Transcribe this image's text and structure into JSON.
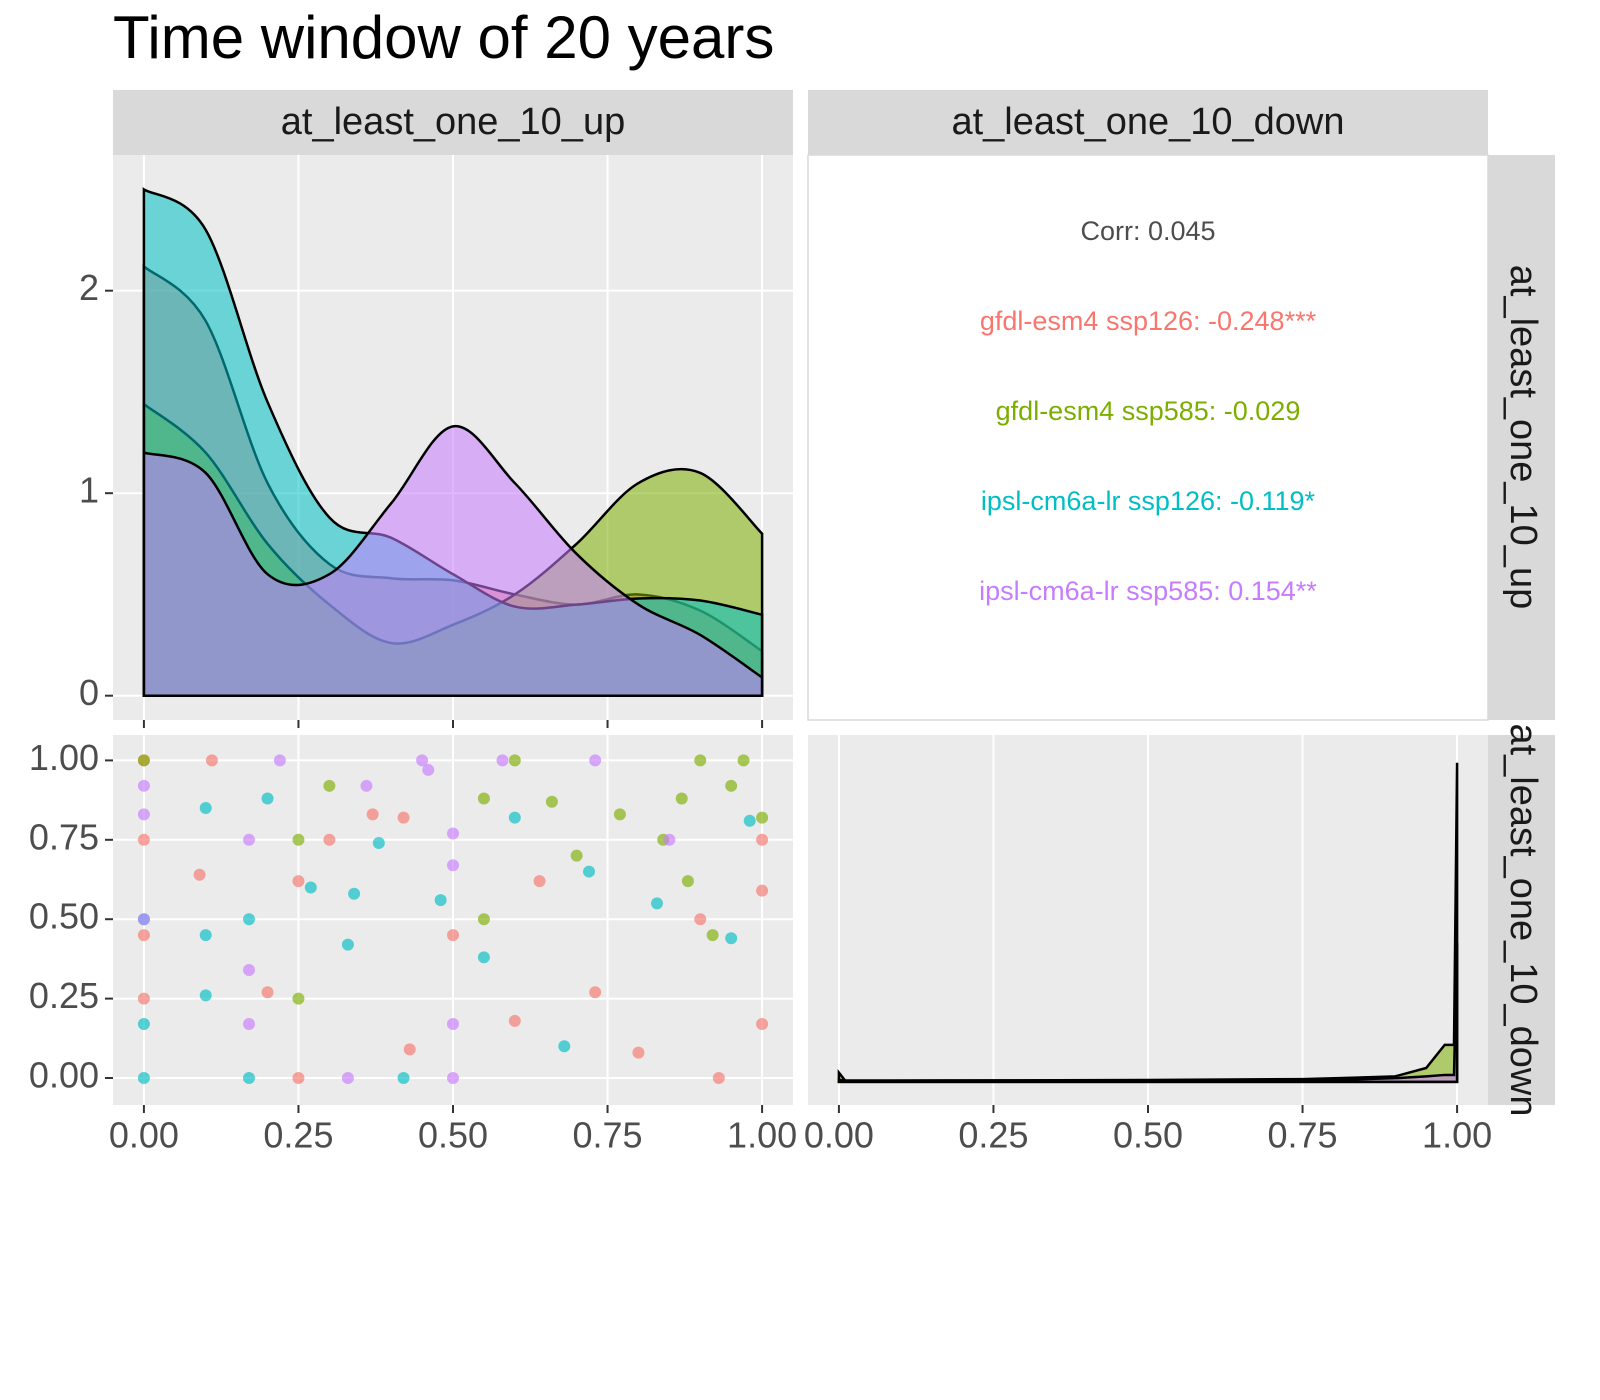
{
  "title": "Time window of 20 years",
  "columns": [
    "at_least_one_10_up",
    "at_least_one_10_down"
  ],
  "rows": [
    "at_least_one_10_up",
    "at_least_one_10_down"
  ],
  "chart_data": [
    {
      "type": "density",
      "x": [
        0,
        0.1,
        0.2,
        0.3,
        0.4,
        0.5,
        0.6,
        0.7,
        0.8,
        0.9,
        1
      ],
      "series": [
        {
          "name": "gfdl-esm4 ssp126",
          "color": "#F8766D",
          "values": [
            2.12,
            1.85,
            1.05,
            0.65,
            0.58,
            0.57,
            0.5,
            0.45,
            0.5,
            0.42,
            0.22
          ]
        },
        {
          "name": "gfdl-esm4 ssp585",
          "color": "#7CAE00",
          "values": [
            1.44,
            1.2,
            0.75,
            0.45,
            0.26,
            0.35,
            0.5,
            0.75,
            1.05,
            1.1,
            0.8
          ]
        },
        {
          "name": "ipsl-cm6a-lr ssp126",
          "color": "#00BFC4",
          "values": [
            2.5,
            2.3,
            1.45,
            0.88,
            0.78,
            0.6,
            0.44,
            0.45,
            0.48,
            0.47,
            0.4
          ]
        },
        {
          "name": "ipsl-cm6a-lr ssp585",
          "color": "#C77CFF",
          "values": [
            1.2,
            1.1,
            0.6,
            0.6,
            0.95,
            1.33,
            1.05,
            0.7,
            0.45,
            0.3,
            0.09
          ]
        }
      ],
      "xlim": [
        -0.05,
        1.05
      ],
      "ylim": [
        -0.12,
        2.67
      ],
      "yticks": [
        0,
        1,
        2
      ],
      "grid": true
    },
    {
      "type": "text",
      "label": "Corr: 0.045",
      "label_color": "#4D4D4D",
      "lines": [
        {
          "text": "gfdl-esm4 ssp126: -0.248***",
          "color": "#F8766D"
        },
        {
          "text": "gfdl-esm4 ssp585: -0.029",
          "color": "#7CAE00"
        },
        {
          "text": "ipsl-cm6a-lr ssp126: -0.119*",
          "color": "#00BFC4"
        },
        {
          "text": "ipsl-cm6a-lr ssp585: 0.154**",
          "color": "#C77CFF"
        }
      ]
    },
    {
      "type": "scatter",
      "series": [
        {
          "name": "gfdl-esm4 ssp126",
          "color": "#F8766D",
          "x": [
            0,
            0,
            0,
            0,
            0.09,
            0.11,
            0.2,
            0.25,
            0.3,
            0.37,
            0.42,
            0.5,
            0.6,
            0.73,
            0.8,
            0.9,
            1,
            1,
            1,
            0.64,
            0.25,
            0.43,
            0.93
          ],
          "y": [
            1,
            0.75,
            0.45,
            0.25,
            0.64,
            1,
            0.27,
            0.62,
            0.75,
            0.83,
            0.82,
            0.45,
            0.18,
            0.27,
            0.08,
            0.5,
            0.75,
            0.17,
            0.59,
            0.62,
            0,
            0.09,
            0
          ]
        },
        {
          "name": "gfdl-esm4 ssp585",
          "color": "#7CAE00",
          "x": [
            0,
            0.25,
            0.3,
            0.55,
            0.66,
            0.7,
            0.77,
            0.87,
            0.88,
            0.92,
            0.95,
            1,
            0.25,
            0.55,
            0.84,
            0.6,
            0.9,
            0.97
          ],
          "y": [
            1,
            0.75,
            0.92,
            0.88,
            0.87,
            0.7,
            0.83,
            0.88,
            0.62,
            0.45,
            0.92,
            0.82,
            0.25,
            0.5,
            0.75,
            1,
            1,
            1
          ]
        },
        {
          "name": "ipsl-cm6a-lr ssp126",
          "color": "#00BFC4",
          "x": [
            0,
            0,
            0,
            0.1,
            0.1,
            0.17,
            0.17,
            0.2,
            0.27,
            0.33,
            0.38,
            0.48,
            0.55,
            0.6,
            0.68,
            0.72,
            0.83,
            0.95,
            0.98,
            0.42,
            0.1,
            0.34
          ],
          "y": [
            0.5,
            0.17,
            0,
            0.85,
            0.45,
            0.5,
            0,
            0.88,
            0.6,
            0.42,
            0.74,
            0.56,
            0.38,
            0.82,
            0.1,
            0.65,
            0.55,
            0.44,
            0.81,
            0,
            0.26,
            0.58
          ]
        },
        {
          "name": "ipsl-cm6a-lr ssp585",
          "color": "#C77CFF",
          "x": [
            0,
            0,
            0,
            0.17,
            0.17,
            0.17,
            0.22,
            0.33,
            0.36,
            0.46,
            0.5,
            0.5,
            0.5,
            0.58,
            0.73,
            0.85,
            0.5,
            0.45
          ],
          "y": [
            0.92,
            0.83,
            0.5,
            0.75,
            0.17,
            0.34,
            1,
            0,
            0.92,
            0.97,
            0,
            0.77,
            0.17,
            1,
            1,
            0.75,
            0.67,
            1
          ]
        }
      ],
      "xlim": [
        -0.05,
        1.05
      ],
      "ylim": [
        -0.085,
        1.08
      ],
      "xticks": [
        {
          "value": 0,
          "label": "0.00"
        },
        {
          "value": 0.25,
          "label": "0.25"
        },
        {
          "value": 0.5,
          "label": "0.50"
        },
        {
          "value": 0.75,
          "label": "0.75"
        },
        {
          "value": 1,
          "label": "1.00"
        }
      ],
      "yticks": [
        {
          "value": 0,
          "label": "0.00"
        },
        {
          "value": 0.25,
          "label": "0.25"
        },
        {
          "value": 0.5,
          "label": "0.50"
        },
        {
          "value": 0.75,
          "label": "0.75"
        },
        {
          "value": 1,
          "label": "1.00"
        }
      ],
      "grid": true
    },
    {
      "type": "density",
      "x": [
        0,
        0.01,
        0.17,
        0.5,
        0.75,
        0.83,
        0.9,
        0.95,
        0.98,
        0.995,
        1
      ],
      "series": [
        {
          "name": "gfdl-esm4 ssp585",
          "color": "#7CAE00",
          "values": [
            2,
            0.3,
            0.3,
            0.4,
            0.6,
            0.9,
            1.2,
            3,
            8,
            8,
            69
          ]
        },
        {
          "name": "ipsl-cm6a-lr ssp585",
          "color": "#C77CFF",
          "values": [
            0.5,
            0.2,
            0.3,
            0.3,
            0.4,
            0.5,
            0.8,
            1.2,
            1.5,
            1.5,
            30
          ]
        }
      ],
      "xlim": [
        -0.05,
        1.05
      ],
      "ylim": [
        -5,
        75
      ],
      "xticks": [
        {
          "value": 0,
          "label": "0.00"
        },
        {
          "value": 0.25,
          "label": "0.25"
        },
        {
          "value": 0.5,
          "label": "0.50"
        },
        {
          "value": 0.75,
          "label": "0.75"
        },
        {
          "value": 1,
          "label": "1.00"
        }
      ],
      "grid": true
    }
  ]
}
